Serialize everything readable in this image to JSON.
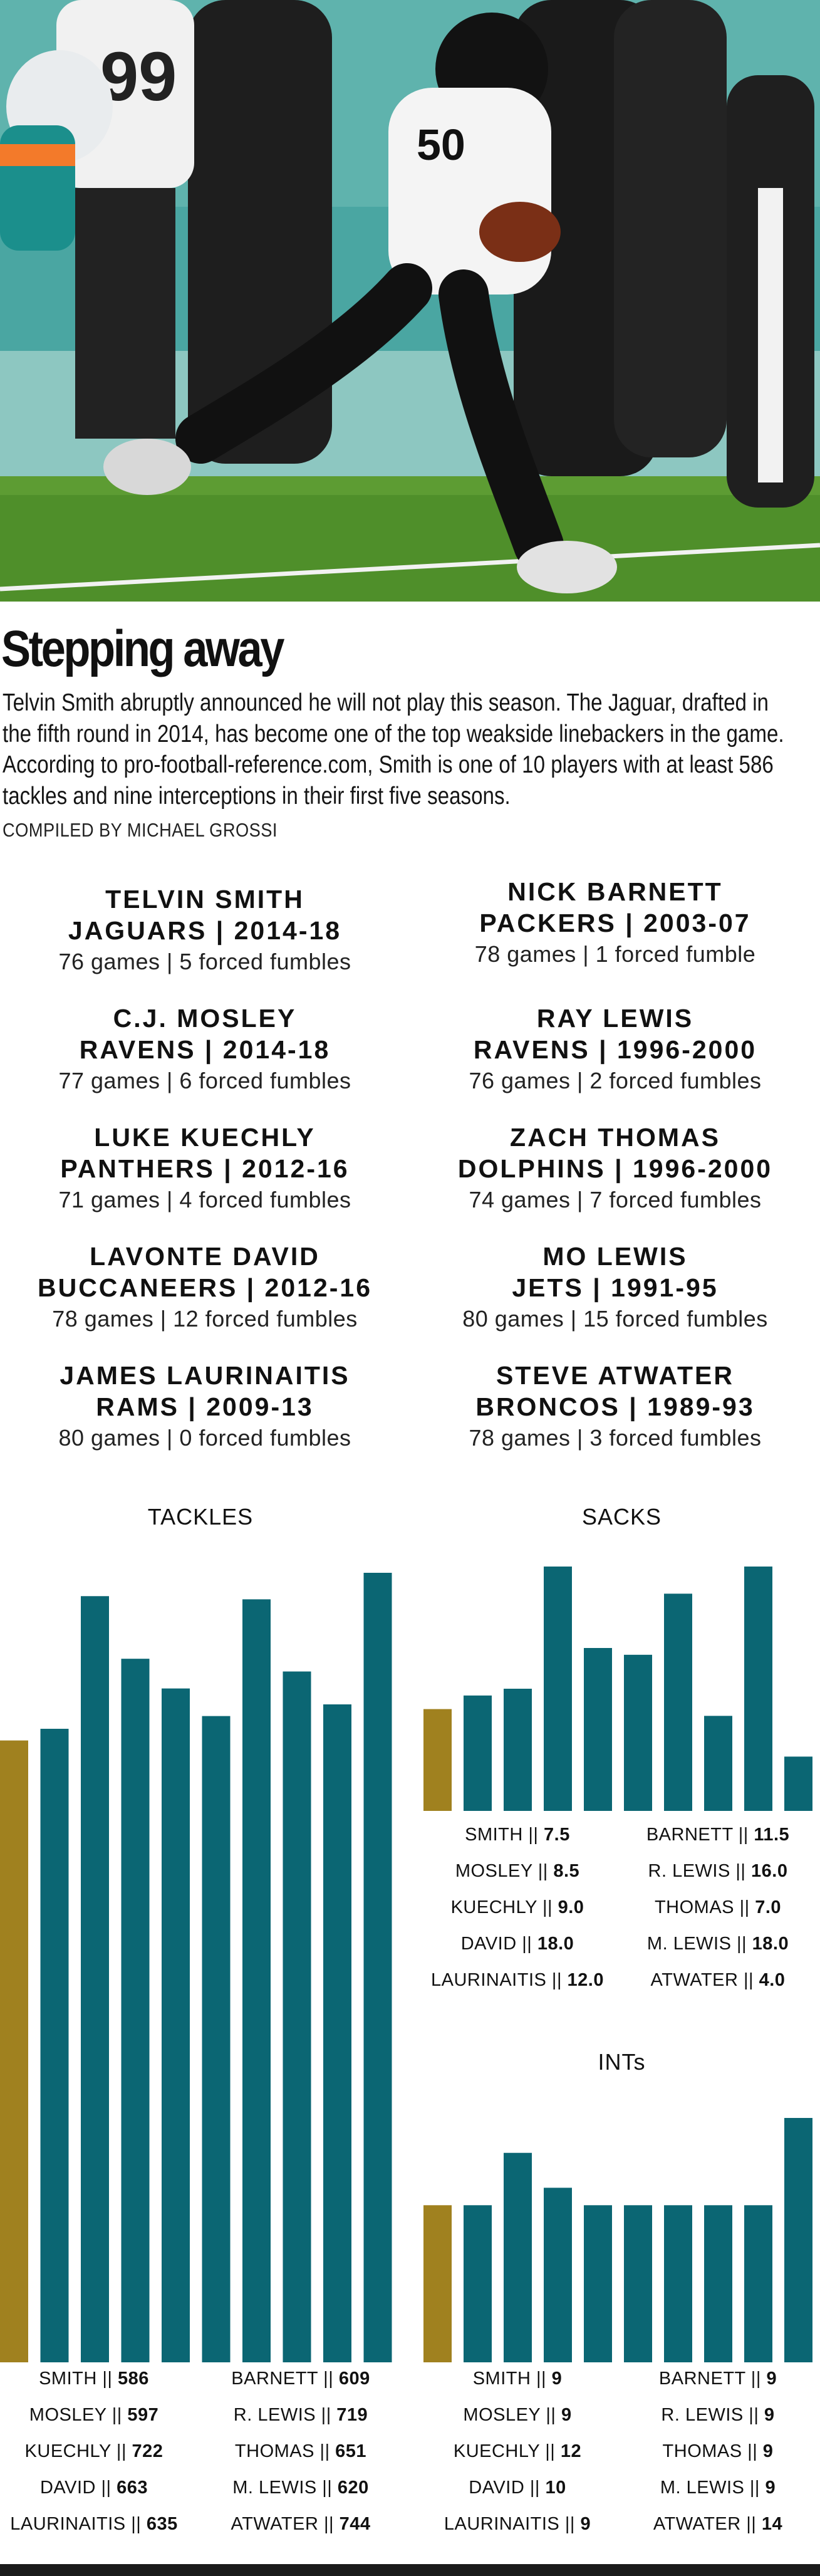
{
  "headline": "Stepping away",
  "intro": "Telvin Smith abruptly announced he will not play this season. The Jaguar, drafted in the fifth round in 2014, has become one of the top weakside linebackers in the game. According to pro-football-reference.com, Smith is one of 10 players with at least 586 tackles and nine interceptions in their first five seasons.",
  "credit": "COMPILED BY MICHAEL GROSSI",
  "photo": {
    "jersey_number": "50",
    "opponent_number": "99"
  },
  "players": [
    {
      "name": "TELVIN SMITH",
      "team": "JAGUARS | 2014-18",
      "stats": "76 games | 5 forced fumbles"
    },
    {
      "name": "NICK BARNETT",
      "team": "PACKERS | 2003-07",
      "stats": "78 games | 1 forced fumble"
    },
    {
      "name": "C.J. MOSLEY",
      "team": "RAVENS | 2014-18",
      "stats": "77 games | 6 forced fumbles"
    },
    {
      "name": "RAY LEWIS",
      "team": "RAVENS | 1996-2000",
      "stats": "76 games | 2 forced fumbles"
    },
    {
      "name": "LUKE KUECHLY",
      "team": "PANTHERS | 2012-16",
      "stats": "71 games | 4 forced fumbles"
    },
    {
      "name": "ZACH THOMAS",
      "team": "DOLPHINS | 1996-2000",
      "stats": "74 games | 7 forced fumbles"
    },
    {
      "name": "LAVONTE DAVID",
      "team": "BUCCANEERS | 2012-16",
      "stats": "78 games | 12 forced fumbles"
    },
    {
      "name": "MO LEWIS",
      "team": "JETS | 1991-95",
      "stats": "80 games | 15 forced fumbles"
    },
    {
      "name": "JAMES LAURINAITIS",
      "team": "RAMS | 2009-13",
      "stats": "80 games | 0 forced fumbles"
    },
    {
      "name": "STEVE ATWATER",
      "team": "BRONCOS | 1989-93",
      "stats": "78 games | 3 forced fumbles"
    }
  ],
  "colors": {
    "highlight": "#a0811f",
    "bar": "#0b6673"
  },
  "chart_data": [
    {
      "type": "bar",
      "title": "TACKLES",
      "categories": [
        "SMITH",
        "MOSLEY",
        "KUECHLY",
        "DAVID",
        "LAURINAITIS",
        "BARNETT",
        "R. LEWIS",
        "THOMAS",
        "M. LEWIS",
        "ATWATER"
      ],
      "values": [
        586,
        597,
        722,
        663,
        635,
        609,
        719,
        651,
        620,
        744
      ],
      "value_labels": [
        "586",
        "597",
        "722",
        "663",
        "635",
        "609",
        "719",
        "651",
        "620",
        "744"
      ],
      "ylim": [
        0,
        744
      ]
    },
    {
      "type": "bar",
      "title": "SACKS",
      "categories": [
        "SMITH",
        "MOSLEY",
        "KUECHLY",
        "DAVID",
        "LAURINAITIS",
        "BARNETT",
        "R. LEWIS",
        "THOMAS",
        "M. LEWIS",
        "ATWATER"
      ],
      "values": [
        7.5,
        8.5,
        9.0,
        18.0,
        12.0,
        11.5,
        16.0,
        7.0,
        18.0,
        4.0
      ],
      "value_labels": [
        "7.5",
        "8.5",
        "9.0",
        "18.0",
        "12.0",
        "11.5",
        "16.0",
        "7.0",
        "18.0",
        "4.0"
      ],
      "ylim": [
        0,
        18
      ]
    },
    {
      "type": "bar",
      "title": "INTs",
      "categories": [
        "SMITH",
        "MOSLEY",
        "KUECHLY",
        "DAVID",
        "LAURINAITIS",
        "BARNETT",
        "R. LEWIS",
        "THOMAS",
        "M. LEWIS",
        "ATWATER"
      ],
      "values": [
        9,
        9,
        12,
        10,
        9,
        9,
        9,
        9,
        9,
        14
      ],
      "value_labels": [
        "9",
        "9",
        "12",
        "10",
        "9",
        "9",
        "9",
        "9",
        "9",
        "14"
      ],
      "ylim": [
        0,
        14
      ]
    }
  ]
}
